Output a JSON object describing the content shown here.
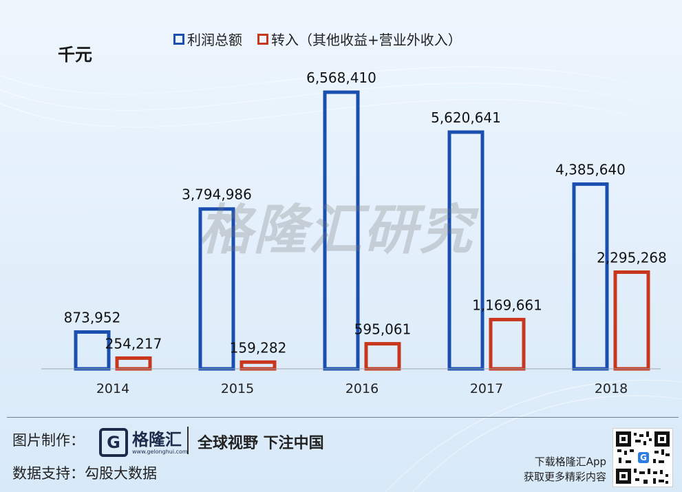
{
  "unit_label": "千元",
  "legend": [
    {
      "label": "利润总额",
      "color": "#1a4fb0"
    },
    {
      "label": "转入（其他收益+营业外收入）",
      "color": "#c8371d"
    }
  ],
  "watermark": "格隆汇研究",
  "chart_data": {
    "type": "bar",
    "categories": [
      "2014",
      "2015",
      "2016",
      "2017",
      "2018"
    ],
    "series": [
      {
        "name": "利润总额",
        "values": [
          873952,
          3794986,
          6568410,
          5620641,
          4385640
        ],
        "labels": [
          "873,952",
          "3,794,986",
          "6,568,410",
          "5,620,641",
          "4,385,640"
        ],
        "color": "#1a4fb0"
      },
      {
        "name": "转入（其他收益+营业外收入）",
        "values": [
          254217,
          159282,
          595061,
          1169661,
          2295268
        ],
        "labels": [
          "254,217",
          "159,282",
          "595,061",
          "1,169,661",
          "2,295,268"
        ],
        "color": "#c8371d"
      }
    ],
    "ylim": [
      0,
      7000000
    ],
    "grid": false,
    "legend_position": "top"
  },
  "footer": {
    "made_by_label": "图片制作：",
    "brand_name": "格隆汇",
    "brand_url": "www.gelonghui.com",
    "slogan": "全球视野 下注中国",
    "data_support_label": "数据支持：",
    "data_source": "勾股大数据",
    "app_line1": "下载格隆汇App",
    "app_line2": "获取更多精彩内容"
  }
}
